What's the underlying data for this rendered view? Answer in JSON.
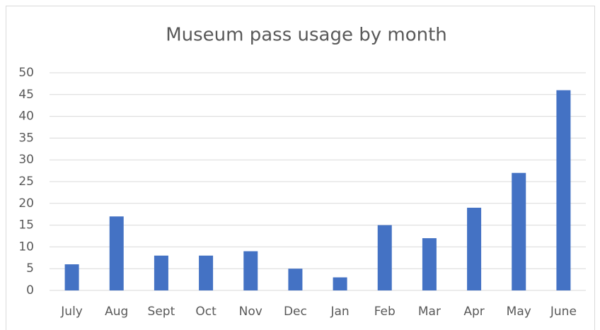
{
  "chart_data": {
    "type": "bar",
    "title": "Museum pass usage by month",
    "categories": [
      "July",
      "Aug",
      "Sept",
      "Oct",
      "Nov",
      "Dec",
      "Jan",
      "Feb",
      "Mar",
      "Apr",
      "May",
      "June"
    ],
    "values": [
      6,
      17,
      8,
      8,
      9,
      5,
      3,
      15,
      12,
      19,
      27,
      46
    ],
    "color": "#4472c4",
    "ylim": [
      0,
      50
    ],
    "yticks": [
      0,
      5,
      10,
      15,
      20,
      25,
      30,
      35,
      40,
      45,
      50
    ],
    "grid": true
  }
}
